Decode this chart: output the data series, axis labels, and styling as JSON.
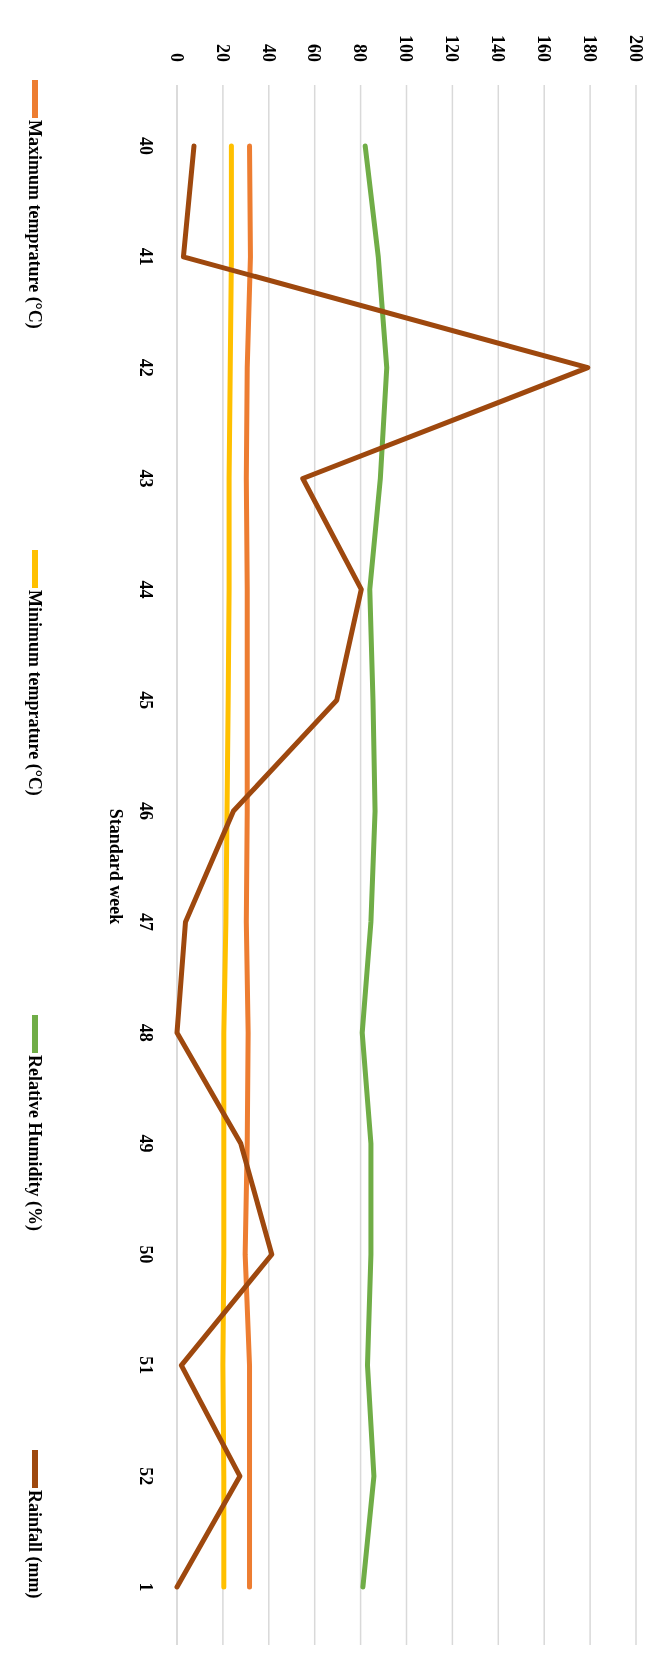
{
  "chart_data": {
    "type": "line",
    "orientation": "horizontal",
    "ylabel": "Standard week",
    "categories": [
      "40",
      "41",
      "42",
      "43",
      "44",
      "45",
      "46",
      "47",
      "48",
      "49",
      "50",
      "51",
      "52",
      "1"
    ],
    "series": [
      {
        "name": "Maximum temprature (°C)",
        "color": "#ed7d31",
        "values": [
          31.6,
          32,
          30.6,
          30.2,
          30.6,
          30.6,
          30.6,
          30.2,
          31,
          30.6,
          29.7,
          31.6,
          31.6,
          31.6
        ]
      },
      {
        "name": "Minimum temprature (°C)",
        "color": "#ffc000",
        "values": [
          23.7,
          23.7,
          23.2,
          22.7,
          22.7,
          22.3,
          21.8,
          21.3,
          20.4,
          20.4,
          20.4,
          20,
          20.4,
          20.4
        ]
      },
      {
        "name": "Relative Humidity (%)",
        "color": "#70ad47",
        "values": [
          82,
          87.7,
          91.4,
          88.6,
          84,
          85.4,
          86.3,
          84.5,
          80.7,
          84.5,
          84.5,
          83,
          85.8,
          81
        ]
      },
      {
        "name": "Rainfall (mm)",
        "color": "#9e480e",
        "values": [
          7.4,
          2.8,
          179,
          54.8,
          80.3,
          69.6,
          24.6,
          3.7,
          0,
          27.8,
          41.3,
          1.9,
          27.4,
          0
        ]
      }
    ],
    "xlim": [
      0,
      200
    ],
    "xticks": [
      0,
      20,
      40,
      60,
      80,
      100,
      120,
      140,
      160,
      180,
      200
    ],
    "grid": "x",
    "legend": "left",
    "marker": "none",
    "line_style": "solid"
  }
}
